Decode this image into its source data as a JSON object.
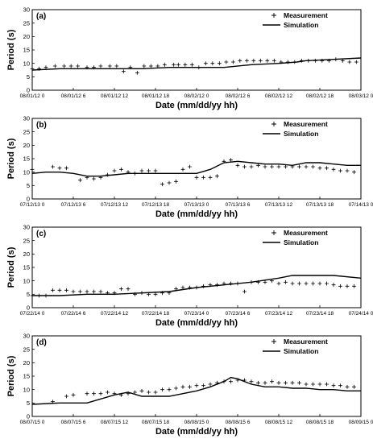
{
  "chart_data": [
    {
      "type": "line",
      "panel_label": "(a)",
      "xlabel": "Date (mm/dd/yy hh)",
      "ylabel": "Period (s)",
      "ylim": [
        0,
        30
      ],
      "yticks": [
        0,
        5,
        10,
        15,
        20,
        25,
        30
      ],
      "xlim": [
        0,
        72
      ],
      "xtick_labels": [
        "08/01/12 0",
        "08/01/12 6",
        "08/01/12 12",
        "08/01/12 18",
        "08/02/12 0",
        "08/02/12 6",
        "08/02/12 12",
        "08/02/12 18",
        "08/03/12 0"
      ],
      "legend": [
        "Measurement",
        "Simulation"
      ],
      "legend_position": "top-right",
      "series": [
        {
          "name": "Measurement",
          "x": [
            0,
            1.5,
            3,
            5,
            7,
            8.5,
            10,
            12,
            13.5,
            15,
            17,
            18.5,
            20,
            21.5,
            23,
            24.5,
            26,
            27.5,
            29,
            31,
            32,
            33.5,
            35,
            36.5,
            38,
            39.5,
            41,
            42.5,
            44,
            45.5,
            47,
            48.5,
            50,
            51.5,
            53,
            54.5,
            56,
            57.5,
            59,
            60.5,
            62,
            63.5,
            65,
            66.5,
            68,
            69.5,
            71
          ],
          "y": [
            8,
            8,
            8.5,
            9,
            9,
            9,
            9,
            8.5,
            8.5,
            9,
            9,
            9,
            7,
            8.5,
            6.5,
            9,
            9,
            9,
            9.5,
            9.5,
            9.5,
            9.5,
            9.5,
            8.5,
            10,
            10,
            10,
            10.5,
            10.5,
            11,
            11,
            11,
            11,
            11,
            11,
            10.5,
            10.5,
            10.5,
            11,
            11,
            11,
            11,
            11,
            11.5,
            11,
            10.5,
            10.5
          ]
        },
        {
          "name": "Simulation",
          "x": [
            0,
            6,
            12,
            18,
            24,
            30,
            36,
            40,
            42,
            48,
            54,
            58,
            60,
            66,
            72
          ],
          "y": [
            7.5,
            8,
            8,
            8,
            8,
            8.5,
            8.5,
            8.5,
            8.5,
            9.5,
            10,
            10.5,
            11,
            11.5,
            12
          ]
        }
      ]
    },
    {
      "type": "line",
      "panel_label": "(b)",
      "xlabel": "Date (mm/dd/yy hh)",
      "ylabel": "Period (s)",
      "ylim": [
        0,
        30
      ],
      "yticks": [
        0,
        5,
        10,
        15,
        20,
        25,
        30
      ],
      "xlim": [
        0,
        48
      ],
      "xtick_labels": [
        "07/12/13 0",
        "07/12/13 6",
        "07/12/13 12",
        "07/12/13 18",
        "07/13/13 0",
        "07/13/13 6",
        "07/13/13 12",
        "07/13/13 18",
        "07/14/13 0"
      ],
      "legend": [
        "Measurement",
        "Simulation"
      ],
      "legend_position": "top-right",
      "series": [
        {
          "name": "Measurement",
          "x": [
            0,
            3,
            4,
            5,
            7,
            8,
            9,
            10,
            11,
            12,
            13,
            14,
            15,
            16,
            17,
            18,
            19,
            20,
            21,
            22,
            23,
            24,
            25,
            26,
            27,
            28,
            29,
            30,
            31,
            32,
            33,
            34,
            35,
            36,
            37,
            38,
            39,
            40,
            41,
            42,
            43,
            44,
            45,
            46,
            47
          ],
          "y": [
            11,
            12,
            11.5,
            11.5,
            7,
            8,
            7.5,
            8,
            9,
            10.5,
            11,
            10,
            9.5,
            10.5,
            10.5,
            10.5,
            5.5,
            6,
            6.5,
            11,
            12,
            8,
            8,
            8,
            8.5,
            14,
            14.5,
            12.5,
            12,
            12,
            12.5,
            12,
            12,
            12,
            12,
            12,
            12,
            12,
            12,
            11.5,
            11.5,
            11,
            10.5,
            10.5,
            10
          ]
        },
        {
          "name": "Simulation",
          "x": [
            0,
            2,
            4,
            6,
            8,
            10,
            12,
            14,
            16,
            18,
            20,
            22,
            24,
            26,
            28,
            30,
            32,
            34,
            36,
            38,
            40,
            42,
            44,
            46,
            48
          ],
          "y": [
            9.5,
            10,
            10,
            9.5,
            8.5,
            8.5,
            9,
            9.5,
            9.5,
            9.5,
            9.5,
            9.5,
            9.5,
            11,
            13.5,
            14,
            13.5,
            13,
            13,
            12.5,
            13.5,
            13.5,
            13,
            12.5,
            12.5
          ]
        }
      ]
    },
    {
      "type": "line",
      "panel_label": "(c)",
      "xlabel": "Date (mm/dd/yy hh)",
      "ylabel": "Period (s)",
      "ylim": [
        0,
        30
      ],
      "yticks": [
        0,
        5,
        10,
        15,
        20,
        25,
        30
      ],
      "xlim": [
        0,
        48
      ],
      "xtick_labels": [
        "07/22/14 0",
        "07/22/14 6",
        "07/22/14 12",
        "07/22/14 18",
        "07/23/14 0",
        "07/23/14 6",
        "07/23/14 12",
        "07/23/14 18",
        "07/24/14 0"
      ],
      "legend": [
        "Measurement",
        "Simulation"
      ],
      "legend_position": "top-right",
      "series": [
        {
          "name": "Measurement",
          "x": [
            0,
            1,
            2,
            3,
            4,
            5,
            6,
            7,
            8,
            9,
            10,
            11,
            12,
            13,
            14,
            15,
            16,
            17,
            18,
            19,
            20,
            21,
            22,
            23,
            24,
            25,
            26,
            27,
            28,
            29,
            30,
            31,
            32,
            33,
            34,
            35,
            36,
            37,
            38,
            39,
            40,
            41,
            42,
            43,
            44,
            45,
            46,
            47
          ],
          "y": [
            4.5,
            4.5,
            4.5,
            6.5,
            6.5,
            6.5,
            6,
            6,
            6,
            6,
            6,
            5.5,
            5.5,
            7,
            7,
            5,
            5.5,
            5,
            5,
            5.5,
            5.5,
            7,
            7.5,
            7.5,
            7.5,
            8,
            8.5,
            8.5,
            9,
            9,
            9,
            6,
            9.5,
            9.5,
            9.5,
            10,
            9,
            9.5,
            9,
            9,
            9,
            9,
            9,
            9,
            8.5,
            8,
            8,
            8
          ]
        },
        {
          "name": "Simulation",
          "x": [
            0,
            4,
            8,
            12,
            16,
            20,
            24,
            28,
            32,
            36,
            38,
            40,
            44,
            48
          ],
          "y": [
            4.5,
            4.5,
            5,
            5,
            5.5,
            6,
            7.5,
            8.5,
            9.5,
            11,
            12,
            12,
            12,
            11
          ]
        }
      ]
    },
    {
      "type": "line",
      "panel_label": "(d)",
      "xlabel": "Date (mm/dd/yy hh)",
      "ylabel": "Period (s)",
      "ylim": [
        0,
        30
      ],
      "yticks": [
        0,
        5,
        10,
        15,
        20,
        25,
        30
      ],
      "xlim": [
        0,
        48
      ],
      "xtick_labels": [
        "08/07/15 0",
        "08/07/15 6",
        "08/07/15 12",
        "08/07/15 18",
        "08/08/15 0",
        "08/08/15 6",
        "08/08/15 12",
        "08/08/15 18",
        "08/09/15 0"
      ],
      "legend": [
        "Measurement",
        "Simulation"
      ],
      "legend_position": "top-right",
      "series": [
        {
          "name": "Measurement",
          "x": [
            3,
            5,
            6,
            8,
            9,
            10,
            11,
            12,
            13,
            14,
            15,
            16,
            17,
            18,
            19,
            20,
            21,
            22,
            23,
            24,
            25,
            26,
            27,
            28,
            29,
            30,
            31,
            32,
            33,
            34,
            35,
            36,
            37,
            38,
            39,
            40,
            41,
            42,
            43,
            44,
            45,
            46,
            47
          ],
          "y": [
            5.5,
            7.5,
            8,
            8.5,
            8.5,
            8.5,
            9,
            8.5,
            8,
            8.5,
            9,
            9.5,
            9,
            9,
            10,
            10,
            10.5,
            11,
            11,
            11.5,
            11.5,
            12,
            12.5,
            13,
            13,
            13.5,
            13.5,
            13,
            12.5,
            12.5,
            13,
            12.5,
            12.5,
            12.5,
            12.5,
            12,
            12,
            12,
            12,
            11.5,
            11.5,
            11,
            11
          ]
        },
        {
          "name": "Simulation",
          "x": [
            0,
            4,
            8,
            10,
            12,
            14,
            16,
            18,
            20,
            22,
            24,
            26,
            28,
            29,
            30,
            32,
            34,
            36,
            38,
            40,
            42,
            44,
            46,
            48
          ],
          "y": [
            4.5,
            5,
            5,
            6.5,
            8,
            9,
            7.5,
            7.5,
            7.5,
            8.5,
            9.5,
            11,
            13,
            14.5,
            14,
            12,
            11,
            11,
            10.5,
            10.5,
            10,
            10,
            9.5,
            9.5
          ]
        }
      ]
    }
  ]
}
